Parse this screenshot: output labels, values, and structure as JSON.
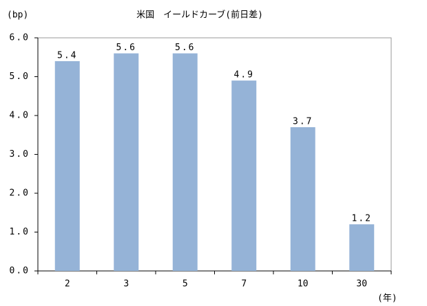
{
  "chart_data": {
    "type": "bar",
    "title": "米国　イールドカーブ(前日差)",
    "y_unit": "(bp)",
    "x_unit": "(年)",
    "categories": [
      "2",
      "3",
      "5",
      "7",
      "10",
      "30"
    ],
    "values": [
      5.4,
      5.6,
      5.6,
      4.9,
      3.7,
      1.2
    ],
    "color": "#95b3d7",
    "ylim": [
      0,
      6
    ],
    "yticks": [
      {
        "value": 0,
        "label": "0.0"
      },
      {
        "value": 1,
        "label": "1.0"
      },
      {
        "value": 2,
        "label": "2.0"
      },
      {
        "value": 3,
        "label": "3.0"
      },
      {
        "value": 4,
        "label": "4.0"
      },
      {
        "value": 5,
        "label": "5.0"
      },
      {
        "value": 6,
        "label": "6.0"
      }
    ],
    "grid": false
  }
}
